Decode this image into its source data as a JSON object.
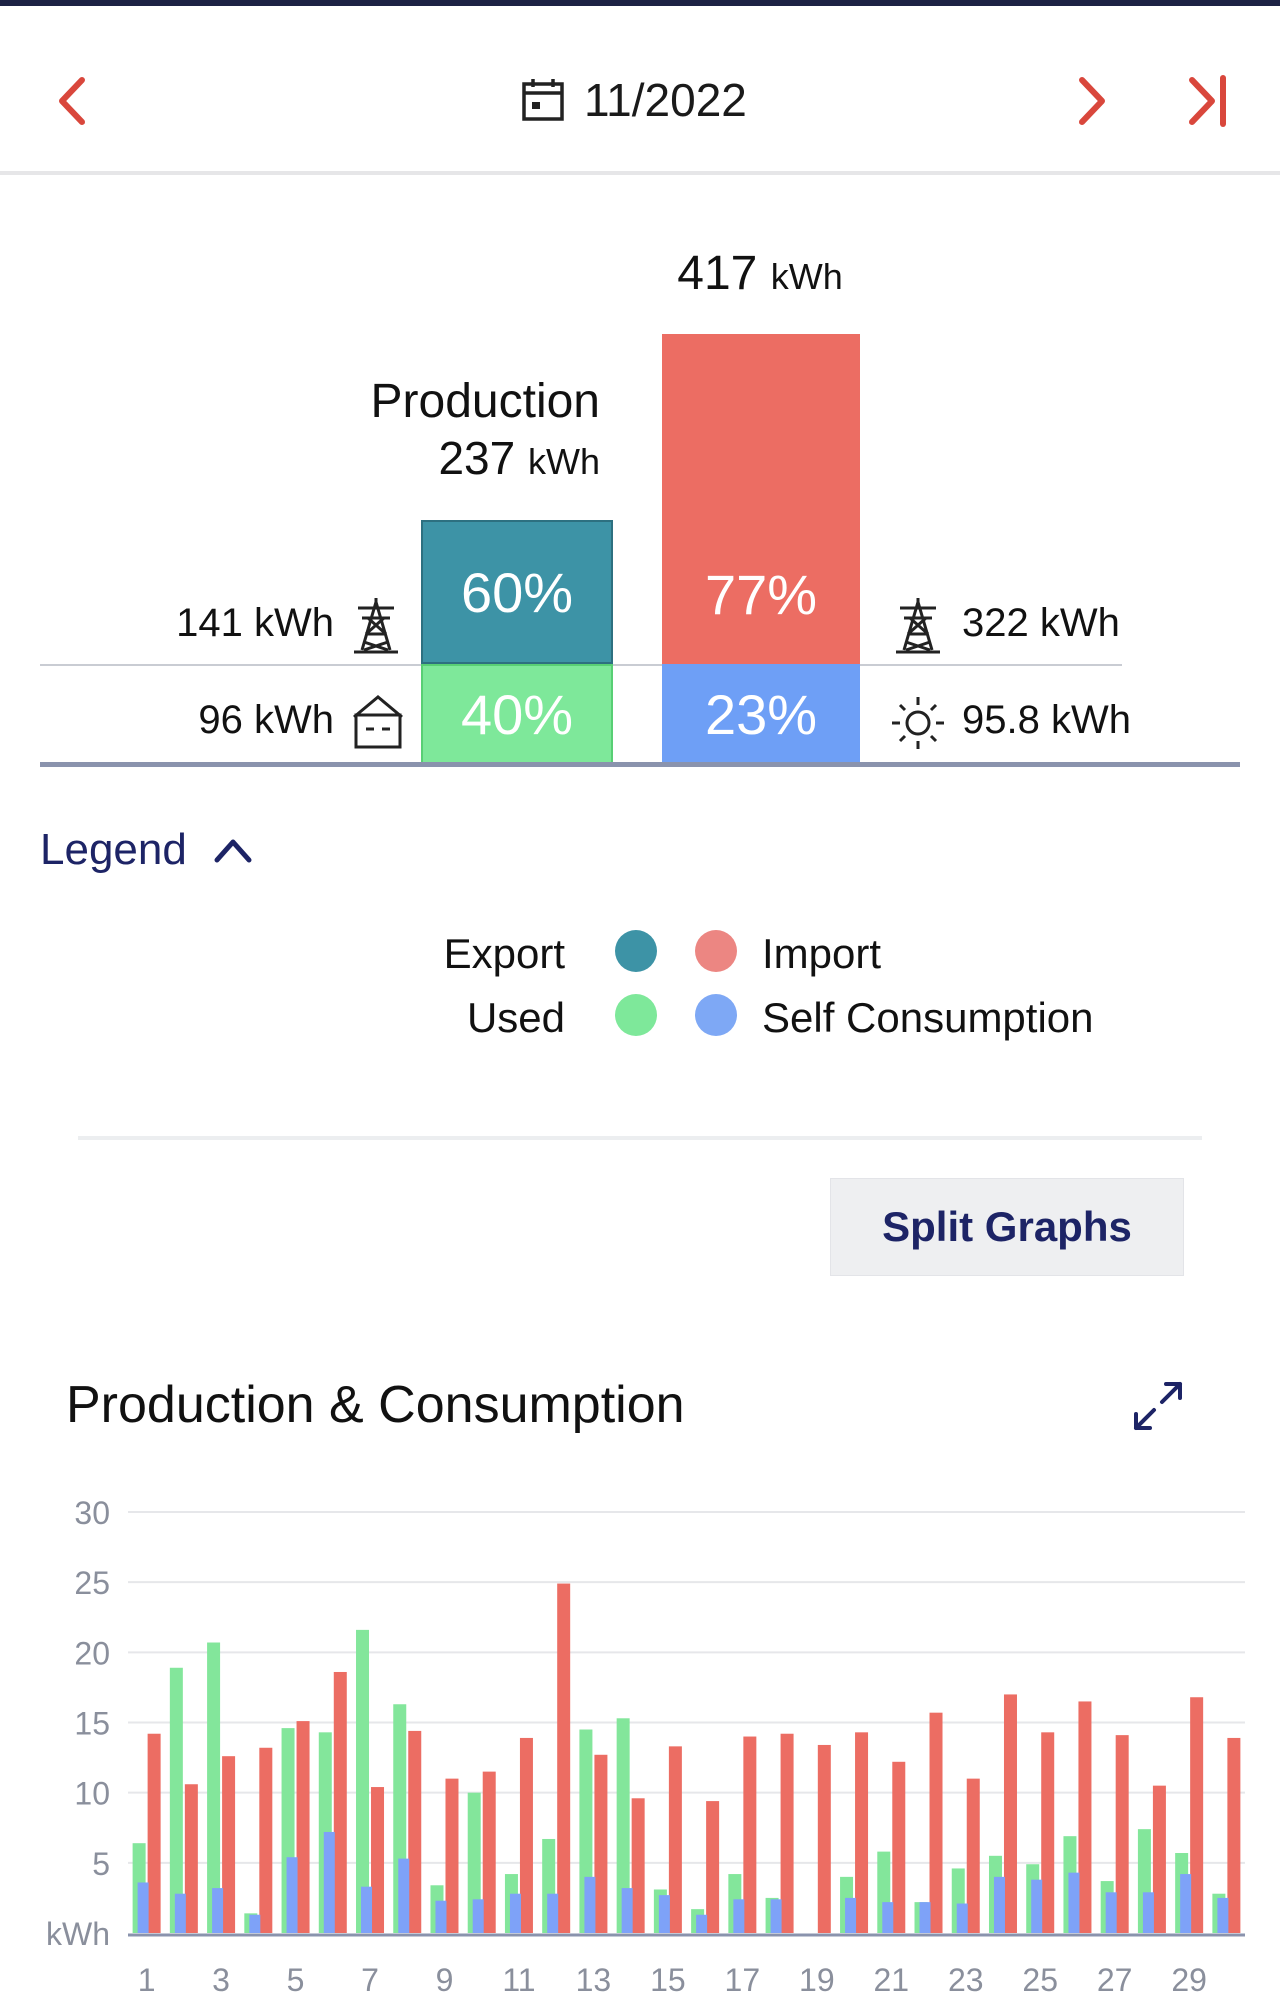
{
  "header": {
    "period": "11/2022"
  },
  "summary": {
    "consumption_total_value": "417",
    "consumption_total_unit": "kWh",
    "production_title": "Production",
    "production_total_value": "237",
    "production_total_unit": "kWh",
    "export_pct": "60%",
    "used_pct": "40%",
    "import_pct": "77%",
    "self_pct": "23%",
    "export_kwh": "141 kWh",
    "used_kwh": "96 kWh",
    "import_kwh": "322 kWh",
    "self_kwh": "95.8 kWh"
  },
  "legend": {
    "toggle_label": "Legend",
    "items": [
      {
        "label": "Export",
        "color": "#3d93a6"
      },
      {
        "label": "Import",
        "color": "#ec8682"
      },
      {
        "label": "Used",
        "color": "#7ee89a"
      },
      {
        "label": "Self Consumption",
        "color": "#7ea8f5"
      }
    ]
  },
  "split_button_label": "Split Graphs",
  "chart": {
    "title": "Production & Consumption",
    "y_unit": "kWh"
  },
  "colors": {
    "used": "#83e69b",
    "import": "#ec6d63",
    "self": "#7ea2f8",
    "accent": "#d9473c",
    "navy": "#1d2466"
  },
  "chart_data": {
    "type": "bar",
    "title": "Production & Consumption",
    "ylabel": "kWh",
    "ylim": [
      0,
      30
    ],
    "yticks": [
      5,
      10,
      15,
      20,
      25,
      30
    ],
    "x": [
      1,
      2,
      3,
      4,
      5,
      6,
      7,
      8,
      9,
      10,
      11,
      12,
      13,
      14,
      15,
      16,
      17,
      18,
      19,
      20,
      21,
      22,
      23,
      24,
      25,
      26,
      27,
      28,
      29,
      30
    ],
    "xtick_labels": [
      "1",
      "3",
      "5",
      "7",
      "9",
      "11",
      "13",
      "15",
      "17",
      "19",
      "21",
      "23",
      "25",
      "27",
      "29"
    ],
    "series": [
      {
        "name": "Used",
        "color": "#83e69b",
        "values": [
          6.4,
          18.9,
          20.7,
          1.4,
          14.6,
          14.3,
          21.6,
          16.3,
          3.4,
          10.0,
          4.2,
          6.7,
          14.5,
          15.3,
          3.1,
          1.7,
          4.2,
          2.5,
          0,
          4.0,
          5.8,
          2.2,
          4.6,
          5.5,
          4.9,
          6.9,
          3.7,
          7.4,
          5.7,
          2.8
        ]
      },
      {
        "name": "Import",
        "color": "#ec6d63",
        "values": [
          14.2,
          10.6,
          12.6,
          13.2,
          15.1,
          18.6,
          10.4,
          14.4,
          11.0,
          11.5,
          13.9,
          24.9,
          12.7,
          9.6,
          13.3,
          9.4,
          14.0,
          14.2,
          13.4,
          14.3,
          12.2,
          15.7,
          11.0,
          17.0,
          14.3,
          16.5,
          14.1,
          10.5,
          16.8,
          13.9
        ]
      },
      {
        "name": "Self Consumption",
        "color": "#7ea2f8",
        "values": [
          3.6,
          2.8,
          3.2,
          1.3,
          5.4,
          7.2,
          3.3,
          5.3,
          2.3,
          2.4,
          2.8,
          2.8,
          4.0,
          3.2,
          2.7,
          1.3,
          2.4,
          2.4,
          0,
          2.5,
          2.2,
          2.2,
          2.1,
          4.0,
          3.8,
          4.3,
          2.9,
          2.9,
          4.2,
          2.5
        ]
      }
    ]
  }
}
